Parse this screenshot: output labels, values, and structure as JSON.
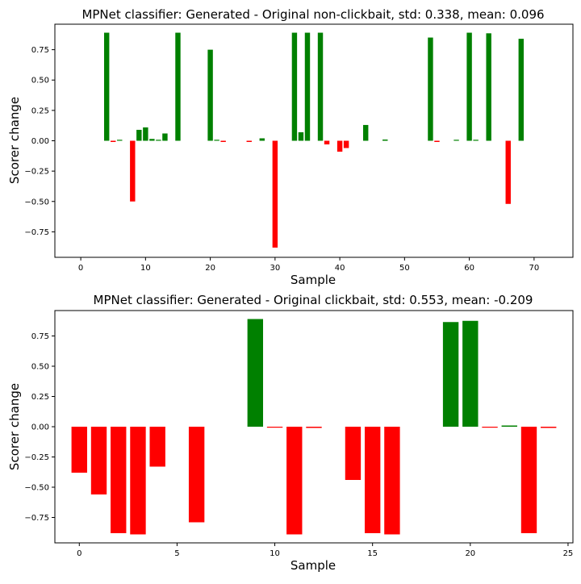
{
  "chart_data": [
    {
      "type": "bar",
      "title": "MPNet classifier: Generated - Original non-clickbait, std: 0.338, mean: 0.096",
      "xlabel": "Sample",
      "ylabel": "Scorer change",
      "xlim": [
        -4,
        76
      ],
      "ylim": [
        -0.96,
        0.96
      ],
      "xticks": [
        0,
        10,
        20,
        30,
        40,
        50,
        60,
        70
      ],
      "yticks": [
        0.75,
        0.5,
        0.25,
        0.0,
        -0.25,
        -0.5,
        -0.75
      ],
      "ytick_labels": [
        "0.75",
        "0.50",
        "0.25",
        "0.00",
        "−0.25",
        "−0.50",
        "−0.75"
      ],
      "bar_width": 0.8,
      "colors": {
        "positive": "#008000",
        "negative": "#ff0000"
      },
      "x": [
        4,
        5,
        6,
        8,
        9,
        10,
        11,
        12,
        13,
        15,
        20,
        21,
        22,
        26,
        28,
        30,
        33,
        34,
        35,
        37,
        38,
        40,
        41,
        44,
        47,
        54,
        55,
        58,
        60,
        61,
        63,
        66,
        68
      ],
      "values": [
        0.89,
        -0.01,
        0.005,
        -0.5,
        0.09,
        0.11,
        0.015,
        0.005,
        0.06,
        0.89,
        0.75,
        0.005,
        -0.01,
        -0.01,
        0.02,
        -0.88,
        0.89,
        0.07,
        0.89,
        0.89,
        -0.03,
        -0.09,
        -0.06,
        0.13,
        0.01,
        0.85,
        -0.01,
        0.005,
        0.89,
        0.005,
        0.885,
        -0.52,
        0.84
      ]
    },
    {
      "type": "bar",
      "title": "MPNet classifier: Generated - Original clickbait, std: 0.553, mean: -0.209",
      "xlabel": "Sample",
      "ylabel": "Scorer change",
      "xlim": [
        -1.25,
        25.25
      ],
      "ylim": [
        -0.96,
        0.96
      ],
      "xticks": [
        0,
        5,
        10,
        15,
        20,
        25
      ],
      "yticks": [
        0.75,
        0.5,
        0.25,
        0.0,
        -0.25,
        -0.5,
        -0.75
      ],
      "ytick_labels": [
        "0.75",
        "0.50",
        "0.25",
        "0.00",
        "−0.25",
        "−0.50",
        "−0.75"
      ],
      "bar_width": 0.8,
      "colors": {
        "positive": "#008000",
        "negative": "#ff0000"
      },
      "x": [
        0,
        1,
        2,
        3,
        4,
        6,
        9,
        10,
        11,
        12,
        14,
        15,
        16,
        19,
        20,
        21,
        22,
        23,
        24
      ],
      "values": [
        -0.38,
        -0.56,
        -0.88,
        -0.89,
        -0.33,
        -0.79,
        0.89,
        -0.005,
        -0.89,
        -0.01,
        -0.44,
        -0.88,
        -0.89,
        0.865,
        0.875,
        -0.005,
        0.01,
        -0.88,
        -0.01
      ]
    }
  ]
}
